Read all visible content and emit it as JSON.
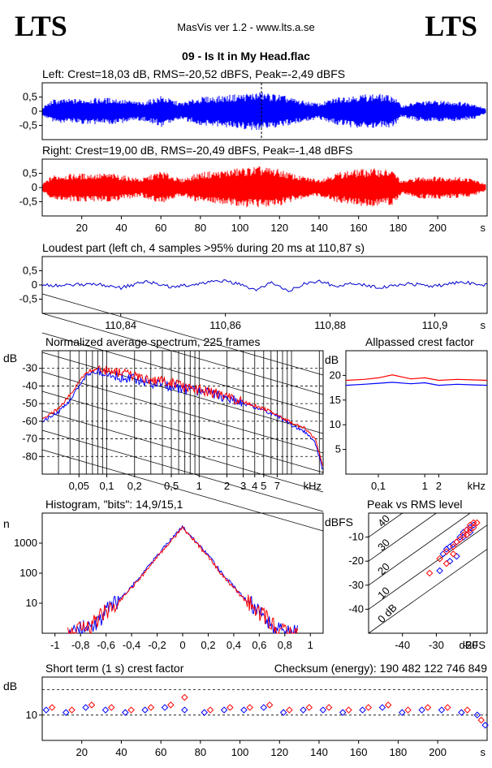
{
  "header": {
    "logo_left": "LTS",
    "logo_right": "LTS",
    "app_title": "MasVis ver 1.2 - www.lts.a.se",
    "file_title": "09 - Is It in My Head.flac"
  },
  "chart_data": [
    {
      "id": "left-waveform",
      "type": "line",
      "title": "Left: Crest=18,03 dB, RMS=-20,52 dBFS, Peak=-2,49 dBFS",
      "color": "#0000ff",
      "ylim": [
        -1,
        1
      ],
      "yticks": [
        "0,5",
        "0",
        "-0,5"
      ],
      "ytick_values": [
        0.5,
        0,
        -0.5
      ],
      "xlim": [
        0,
        225
      ],
      "marker_x": 110.87,
      "envelope": {
        "t": [
          0,
          5,
          20,
          35,
          50,
          60,
          70,
          80,
          90,
          100,
          110,
          120,
          130,
          140,
          150,
          160,
          170,
          178,
          182,
          190,
          200,
          210,
          218,
          225
        ],
        "amp": [
          0.15,
          0.42,
          0.45,
          0.48,
          0.32,
          0.55,
          0.3,
          0.5,
          0.55,
          0.62,
          0.68,
          0.6,
          0.4,
          0.28,
          0.52,
          0.6,
          0.62,
          0.55,
          0.2,
          0.35,
          0.38,
          0.35,
          0.3,
          0.08
        ]
      }
    },
    {
      "id": "right-waveform",
      "type": "line",
      "title": "Right: Crest=19,00 dB, RMS=-20,49 dBFS, Peak=-1,48 dBFS",
      "color": "#ff0000",
      "ylim": [
        -1,
        1
      ],
      "yticks": [
        "0,5",
        "0",
        "-0,5"
      ],
      "ytick_values": [
        0.5,
        0,
        -0.5
      ],
      "xlim": [
        0,
        225
      ],
      "xticks": [
        "20",
        "40",
        "60",
        "80",
        "100",
        "120",
        "140",
        "160",
        "180",
        "200"
      ],
      "xtick_values": [
        20,
        40,
        60,
        80,
        100,
        120,
        140,
        160,
        180,
        200
      ],
      "xunit": "s",
      "envelope": {
        "t": [
          0,
          5,
          20,
          35,
          50,
          60,
          70,
          80,
          90,
          100,
          110,
          120,
          130,
          140,
          150,
          160,
          170,
          178,
          182,
          190,
          200,
          210,
          218,
          225
        ],
        "amp": [
          0.15,
          0.45,
          0.5,
          0.5,
          0.32,
          0.6,
          0.3,
          0.55,
          0.6,
          0.7,
          0.75,
          0.65,
          0.42,
          0.3,
          0.55,
          0.65,
          0.68,
          0.6,
          0.22,
          0.38,
          0.4,
          0.38,
          0.32,
          0.1
        ]
      }
    },
    {
      "id": "loudest-part",
      "type": "line",
      "title": "Loudest part (left  ch, 4 samples >95% during 20 ms at 110,87 s)",
      "color": "#0000cc",
      "ylim": [
        -1,
        1
      ],
      "yticks": [
        "0,5",
        "0",
        "-0,5"
      ],
      "ytick_values": [
        0.5,
        0,
        -0.5
      ],
      "xlim": [
        110.825,
        110.91
      ],
      "xticks": [
        "110,84",
        "110,86",
        "110,88",
        "110,9"
      ],
      "xtick_values": [
        110.84,
        110.86,
        110.88,
        110.9
      ],
      "xunit": "s",
      "points_x": [
        110.825,
        110.83,
        110.835,
        110.84,
        110.845,
        110.85,
        110.855,
        110.86,
        110.863,
        110.866,
        110.869,
        110.872,
        110.875,
        110.878,
        110.881,
        110.885,
        110.89,
        110.895,
        110.9,
        110.905,
        110.91
      ],
      "points_y": [
        0.0,
        -0.02,
        0.05,
        -0.1,
        0.12,
        -0.08,
        0.05,
        0.15,
        0.0,
        -0.2,
        0.1,
        -0.25,
        0.05,
        0.15,
        -0.05,
        0.05,
        -0.1,
        0.05,
        -0.05,
        0.1,
        0.0
      ]
    },
    {
      "id": "average-spectrum",
      "type": "line",
      "title": "Normalized average spectrum, 225 frames",
      "ylabel": "dB",
      "xunit": "kHz",
      "ylim": [
        -90,
        -20
      ],
      "yticks": [
        "-30",
        "-40",
        "-50",
        "-60",
        "-70",
        "-80"
      ],
      "ytick_values": [
        -30,
        -40,
        -50,
        -60,
        -70,
        -80
      ],
      "xlim": [
        0.02,
        22
      ],
      "xscale": "log",
      "xticks": [
        "0,05",
        "0,1",
        "0,2",
        "0,5",
        "1",
        "2",
        "3",
        "4",
        "5",
        "7"
      ],
      "xtick_values": [
        0.05,
        0.1,
        0.2,
        0.5,
        1,
        2,
        3,
        4,
        5,
        7
      ],
      "series": [
        {
          "color": "#0000ff",
          "x": [
            0.02,
            0.03,
            0.04,
            0.05,
            0.06,
            0.08,
            0.1,
            0.15,
            0.2,
            0.3,
            0.5,
            0.7,
            1,
            1.5,
            2,
            3,
            4,
            5,
            7,
            10,
            14,
            18,
            22
          ],
          "y": [
            -60,
            -55,
            -48,
            -40,
            -34,
            -32,
            -33,
            -35,
            -36,
            -38,
            -40,
            -42,
            -43,
            -45,
            -47,
            -50,
            -52,
            -54,
            -57,
            -62,
            -66,
            -72,
            -88
          ]
        },
        {
          "color": "#ff0000",
          "x": [
            0.02,
            0.03,
            0.04,
            0.05,
            0.06,
            0.08,
            0.1,
            0.15,
            0.2,
            0.3,
            0.5,
            0.7,
            1,
            1.5,
            2,
            3,
            4,
            5,
            7,
            10,
            14,
            18,
            22
          ],
          "y": [
            -59,
            -53,
            -45,
            -38,
            -32,
            -30,
            -31,
            -33,
            -34,
            -36,
            -38,
            -41,
            -42,
            -44,
            -46,
            -49,
            -51,
            -53,
            -56,
            -61,
            -64,
            -70,
            -86
          ]
        }
      ]
    },
    {
      "id": "allpassed-crest",
      "type": "line",
      "title": "Allpassed crest factor",
      "ylabel": "dB",
      "xunit": "kHz",
      "ylim": [
        0,
        25
      ],
      "yticks": [
        "20",
        "15",
        "10",
        "5"
      ],
      "ytick_values": [
        20,
        15,
        10,
        5
      ],
      "xlim": [
        0.02,
        22
      ],
      "xscale": "log",
      "xticks": [
        "0,1",
        "1",
        "2"
      ],
      "xtick_values": [
        0.1,
        1,
        2
      ],
      "series": [
        {
          "color": "#ff0000",
          "x": [
            0.02,
            0.05,
            0.1,
            0.2,
            0.5,
            1,
            2,
            5,
            10,
            22
          ],
          "y": [
            19.0,
            19.2,
            19.5,
            20.1,
            19.3,
            19.5,
            19.0,
            19.2,
            19.1,
            19.0
          ]
        },
        {
          "color": "#0000ff",
          "x": [
            0.02,
            0.05,
            0.1,
            0.2,
            0.5,
            1,
            2,
            5,
            10,
            22
          ],
          "y": [
            18.0,
            18.2,
            18.4,
            18.6,
            18.3,
            18.5,
            18.0,
            18.2,
            18.1,
            18.0
          ]
        }
      ]
    },
    {
      "id": "histogram",
      "type": "line",
      "title": "Histogram, \"bits\": 14,9/15,1",
      "ylabel": "n",
      "yscale": "log",
      "ylim": [
        1,
        10000
      ],
      "yticks": [
        "1000",
        "100",
        "10"
      ],
      "ytick_values": [
        1000,
        100,
        10
      ],
      "xlim": [
        -1.1,
        1.1
      ],
      "xticks": [
        "-1",
        "-0,8",
        "-0,6",
        "-0,4",
        "-0,2",
        "0",
        "0,2",
        "0,4",
        "0,6",
        "0,8",
        "1"
      ],
      "xtick_values": [
        -1,
        -0.8,
        -0.6,
        -0.4,
        -0.2,
        0,
        0.2,
        0.4,
        0.6,
        0.8,
        1
      ],
      "series": [
        {
          "color": "#0000ff",
          "x": [
            -0.85,
            -0.7,
            -0.6,
            -0.5,
            -0.4,
            -0.3,
            -0.2,
            -0.1,
            0,
            0.1,
            0.2,
            0.3,
            0.4,
            0.5,
            0.6,
            0.7,
            0.8
          ],
          "y": [
            1,
            2,
            5,
            12,
            35,
            110,
            380,
            1200,
            3500,
            1200,
            380,
            110,
            35,
            12,
            5,
            2,
            1
          ]
        },
        {
          "color": "#ff0000",
          "x": [
            -0.85,
            -0.7,
            -0.6,
            -0.5,
            -0.4,
            -0.3,
            -0.2,
            -0.1,
            0,
            0.1,
            0.2,
            0.3,
            0.4,
            0.5,
            0.6,
            0.7,
            0.8
          ],
          "y": [
            1,
            2,
            5,
            11,
            32,
            100,
            350,
            1100,
            3200,
            1100,
            350,
            100,
            32,
            11,
            5,
            2,
            1
          ]
        }
      ]
    },
    {
      "id": "peak-vs-rms",
      "type": "scatter",
      "title": "Peak vs RMS level",
      "ylabel": "dBFS",
      "xunit": "dBFS",
      "xlim": [
        -50,
        -15
      ],
      "ylim": [
        -50,
        0
      ],
      "xticks": [
        "-40",
        "-30",
        "-20"
      ],
      "xtick_values": [
        -40,
        -30,
        -20
      ],
      "yticks": [
        "-10",
        "-20",
        "-30",
        "-40"
      ],
      "ytick_values": [
        -10,
        -20,
        -30,
        -40
      ],
      "diagonal_labels": [
        "40",
        "30",
        "20",
        "10",
        "0 dB"
      ],
      "diagonal_offsets": [
        40,
        30,
        20,
        10,
        0
      ],
      "series": [
        {
          "color": "#0000ff",
          "x": [
            -28,
            -27,
            -26,
            -25,
            -24,
            -23,
            -22,
            -22,
            -21,
            -21,
            -20,
            -20,
            -19,
            -24,
            -26,
            -29
          ],
          "y": [
            -17,
            -15,
            -14,
            -13,
            -12,
            -10,
            -10,
            -8,
            -9,
            -7,
            -8,
            -6,
            -5,
            -18,
            -20,
            -24
          ]
        },
        {
          "color": "#ff0000",
          "x": [
            -29,
            -27,
            -25,
            -24,
            -23,
            -22,
            -21,
            -21,
            -20,
            -20,
            -19,
            -19,
            -18,
            -32,
            -27,
            -25
          ],
          "y": [
            -19,
            -16,
            -14,
            -12,
            -11,
            -9,
            -9,
            -7,
            -7,
            -5,
            -6,
            -4,
            -4,
            -25,
            -21,
            -17
          ]
        }
      ]
    },
    {
      "id": "short-term-crest",
      "type": "scatter",
      "title": "Short term (1 s) crest factor",
      "checksum": "Checksum (energy):   190 482 122 746 849",
      "ylabel": "dB",
      "ylim": [
        0,
        25
      ],
      "yticks": [
        "10"
      ],
      "ytick_values": [
        10
      ],
      "dashed_levels": [
        10,
        20
      ],
      "xlim": [
        0,
        225
      ],
      "xticks": [
        "20",
        "40",
        "60",
        "80",
        "100",
        "120",
        "140",
        "160",
        "180",
        "200"
      ],
      "xtick_values": [
        20,
        40,
        60,
        80,
        100,
        120,
        140,
        160,
        180,
        200
      ],
      "xunit": "s",
      "series": [
        {
          "color": "#0000ff",
          "x": [
            2,
            12,
            22,
            32,
            42,
            52,
            62,
            72,
            82,
            92,
            102,
            112,
            122,
            132,
            142,
            152,
            162,
            172,
            182,
            192,
            202,
            212,
            220,
            224
          ],
          "y": [
            12,
            11,
            13,
            12,
            11,
            12,
            13,
            12,
            11,
            12,
            12,
            13,
            11,
            12,
            12,
            11,
            12,
            13,
            11,
            12,
            12,
            11,
            10,
            6
          ]
        },
        {
          "color": "#ff0000",
          "x": [
            5,
            15,
            25,
            35,
            45,
            55,
            65,
            72,
            85,
            95,
            105,
            115,
            125,
            135,
            145,
            155,
            165,
            175,
            185,
            195,
            205,
            215,
            222
          ],
          "y": [
            13,
            12,
            14,
            13,
            12,
            13,
            14,
            17,
            12,
            13,
            13,
            14,
            12,
            13,
            13,
            12,
            13,
            14,
            12,
            13,
            13,
            12,
            8
          ]
        }
      ]
    }
  ]
}
